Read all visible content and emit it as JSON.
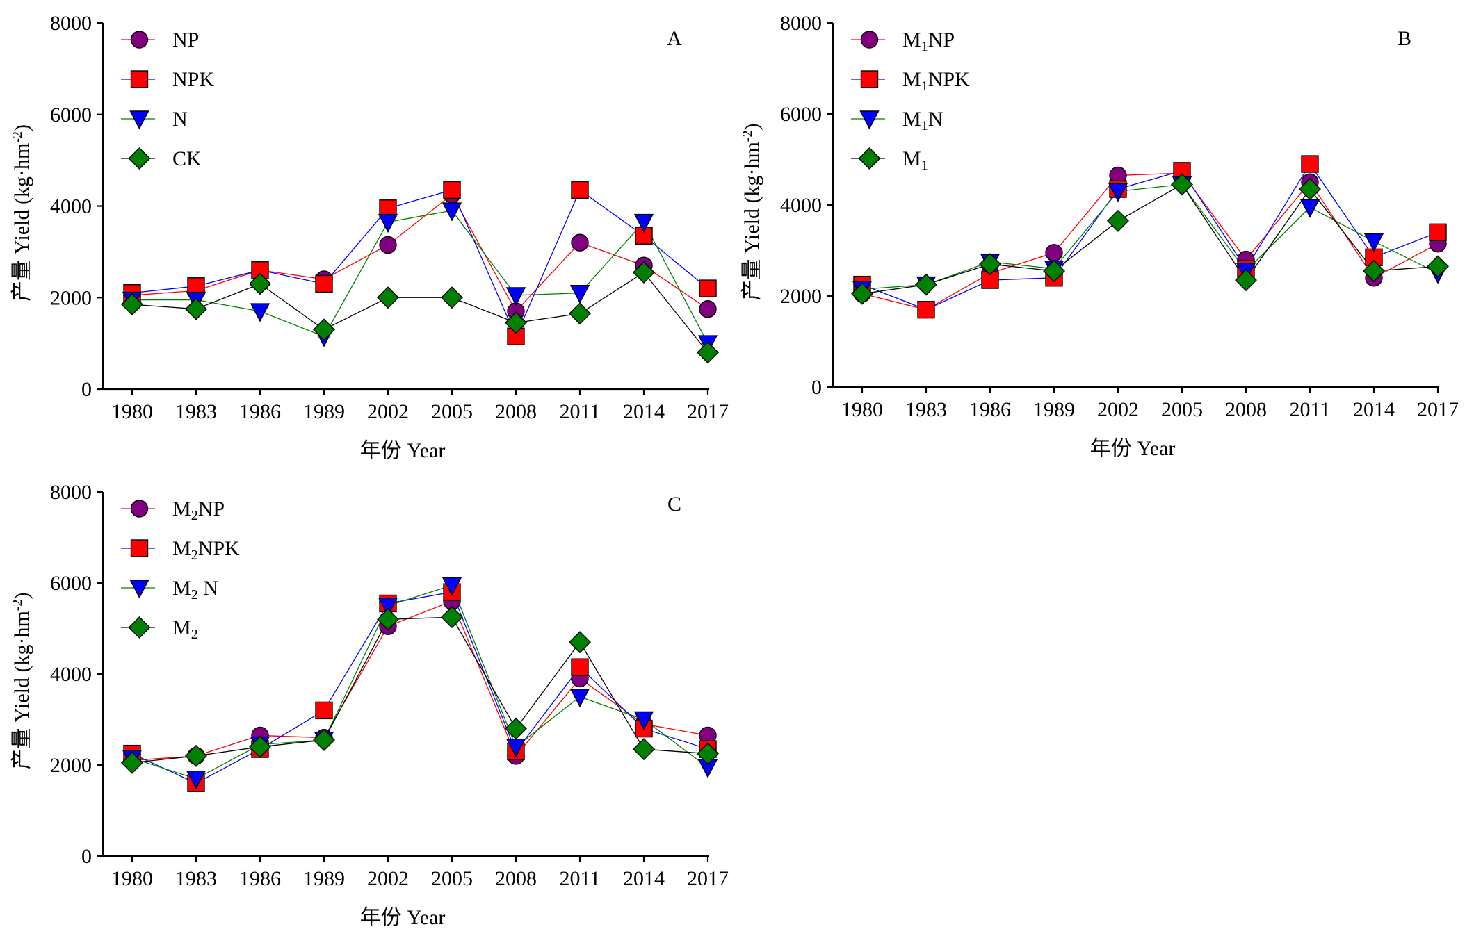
{
  "chart_data": [
    {
      "type": "line",
      "panel_label": "A",
      "xlabel": "年份 Year",
      "ylabel": "产量 Yield (kg·hm⁻²)",
      "ylim": [
        0,
        8000
      ],
      "yticks": [
        "0",
        "2000",
        "4000",
        "6000",
        "8000"
      ],
      "categories": [
        "1980",
        "1983",
        "1986",
        "1989",
        "2002",
        "2005",
        "2008",
        "2011",
        "2014",
        "2017"
      ],
      "legend_position": "top-left",
      "series": [
        {
          "name": "NP",
          "marker": "circle",
          "color": "#ff0000",
          "fill": "#800080",
          "values": [
            2050,
            2150,
            2600,
            2400,
            3150,
            4250,
            1700,
            3200,
            2700,
            1750
          ]
        },
        {
          "name": "NPK",
          "marker": "square",
          "color": "#0000ff",
          "fill": "#ff0000",
          "values": [
            2100,
            2250,
            2600,
            2300,
            3950,
            4350,
            1150,
            4350,
            3350,
            2200
          ]
        },
        {
          "name": "N",
          "marker": "triangle-down",
          "color": "#008000",
          "fill": "#0000ff",
          "values": [
            1950,
            1950,
            1700,
            1150,
            3650,
            3900,
            2050,
            2100,
            3650,
            1000
          ]
        },
        {
          "name": "CK",
          "marker": "diamond",
          "color": "#000000",
          "fill": "#008000",
          "values": [
            1850,
            1750,
            2300,
            1300,
            2000,
            2000,
            1450,
            1650,
            2550,
            800
          ]
        }
      ]
    },
    {
      "type": "line",
      "panel_label": "B",
      "xlabel": "年份 Year",
      "ylabel": "产量 Yield (kg·hm⁻²)",
      "ylim": [
        0,
        8000
      ],
      "yticks": [
        "0",
        "2000",
        "4000",
        "6000",
        "8000"
      ],
      "categories": [
        "1980",
        "1983",
        "1986",
        "1989",
        "2002",
        "2005",
        "2008",
        "2011",
        "2014",
        "2017"
      ],
      "legend_position": "top-left",
      "series": [
        {
          "name": "M₁NP",
          "marker": "circle",
          "color": "#ff0000",
          "fill": "#800080",
          "values": [
            2050,
            1700,
            2500,
            2950,
            4650,
            4700,
            2800,
            4500,
            2400,
            3150
          ]
        },
        {
          "name": "M₁NPK",
          "marker": "square",
          "color": "#0000ff",
          "fill": "#ff0000",
          "values": [
            2250,
            1700,
            2350,
            2400,
            4350,
            4750,
            2600,
            4900,
            2850,
            3400
          ]
        },
        {
          "name": "M₁N",
          "marker": "triangle-down",
          "color": "#008000",
          "fill": "#0000ff",
          "values": [
            2150,
            2250,
            2750,
            2600,
            4300,
            4450,
            2550,
            3950,
            3200,
            2500
          ]
        },
        {
          "name": "M₁",
          "marker": "diamond",
          "color": "#000000",
          "fill": "#008000",
          "values": [
            2050,
            2250,
            2700,
            2550,
            3650,
            4450,
            2350,
            4350,
            2550,
            2650
          ]
        }
      ]
    },
    {
      "type": "line",
      "panel_label": "C",
      "xlabel": "年份 Year",
      "ylabel": "产量 Yield (kg·hm⁻²)",
      "ylim": [
        0,
        8000
      ],
      "yticks": [
        "0",
        "2000",
        "4000",
        "6000",
        "8000"
      ],
      "categories": [
        "1980",
        "1983",
        "1986",
        "1989",
        "2002",
        "2005",
        "2008",
        "2011",
        "2014",
        "2017"
      ],
      "legend_position": "top-left",
      "series": [
        {
          "name": "M₂NP",
          "marker": "circle",
          "color": "#ff0000",
          "fill": "#800080",
          "values": [
            2100,
            2200,
            2650,
            2600,
            5050,
            5600,
            2200,
            3900,
            2900,
            2650
          ]
        },
        {
          "name": "M₂NPK",
          "marker": "square",
          "color": "#0000ff",
          "fill": "#ff0000",
          "values": [
            2250,
            1600,
            2350,
            3200,
            5550,
            5800,
            2300,
            4150,
            2800,
            2350
          ]
        },
        {
          "name": "M₂ N",
          "marker": "triangle-down",
          "color": "#008000",
          "fill": "#0000ff",
          "values": [
            2150,
            1700,
            2450,
            2550,
            5500,
            5950,
            2400,
            3500,
            3000,
            1950
          ]
        },
        {
          "name": "M₂",
          "marker": "diamond",
          "color": "#000000",
          "fill": "#008000",
          "values": [
            2050,
            2200,
            2400,
            2550,
            5200,
            5250,
            2800,
            4700,
            2350,
            2250
          ]
        }
      ]
    }
  ]
}
